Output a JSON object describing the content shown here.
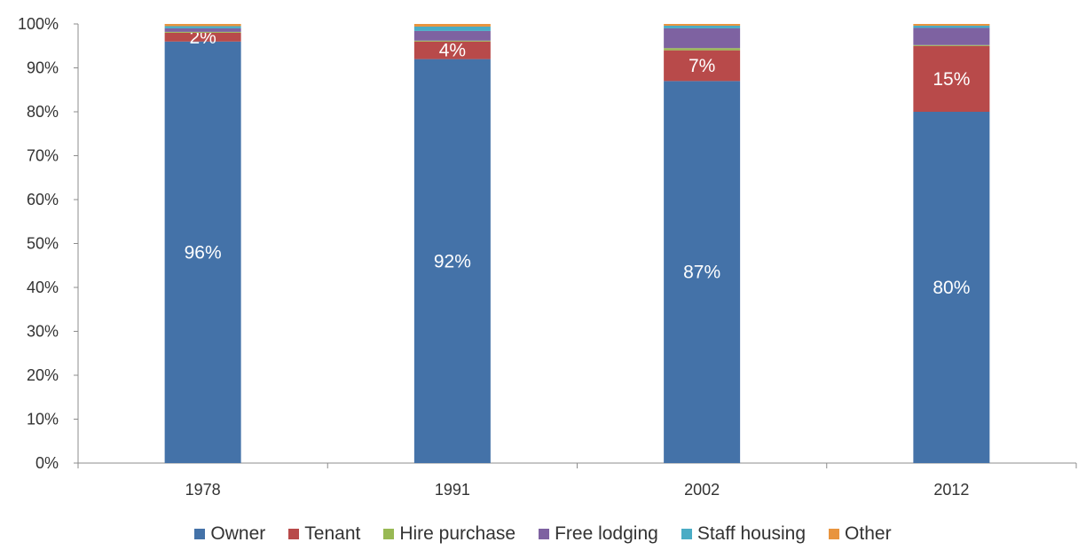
{
  "chart_data": {
    "type": "bar",
    "stacked": true,
    "categories": [
      "1978",
      "1991",
      "2002",
      "2012"
    ],
    "ylim": [
      0,
      100
    ],
    "yticks": [
      "0%",
      "10%",
      "20%",
      "30%",
      "40%",
      "50%",
      "60%",
      "70%",
      "80%",
      "90%",
      "100%"
    ],
    "grid": false,
    "legend_position": "bottom",
    "series": [
      {
        "name": "Owner",
        "color": "#4472A8",
        "values": [
          96,
          92,
          87,
          80
        ],
        "labels": [
          "96%",
          "92%",
          "87%",
          "80%"
        ]
      },
      {
        "name": "Tenant",
        "color": "#B84A4A",
        "values": [
          2,
          4,
          7,
          15
        ],
        "labels": [
          "2%",
          "4%",
          "7%",
          "15%"
        ]
      },
      {
        "name": "Hire purchase",
        "color": "#98B954",
        "values": [
          0.2,
          0.2,
          0.5,
          0.2
        ],
        "labels": [
          "",
          "",
          "",
          ""
        ]
      },
      {
        "name": "Free lodging",
        "color": "#7E62A1",
        "values": [
          0.8,
          2.2,
          4.5,
          3.9
        ],
        "labels": [
          "",
          "",
          "",
          ""
        ]
      },
      {
        "name": "Staff housing",
        "color": "#4AACC5",
        "values": [
          0.5,
          1.0,
          0.6,
          0.5
        ],
        "labels": [
          "",
          "",
          "",
          ""
        ]
      },
      {
        "name": "Other",
        "color": "#E8943E",
        "values": [
          0.5,
          0.6,
          0.4,
          0.4
        ],
        "labels": [
          "",
          "",
          "",
          ""
        ]
      }
    ]
  }
}
